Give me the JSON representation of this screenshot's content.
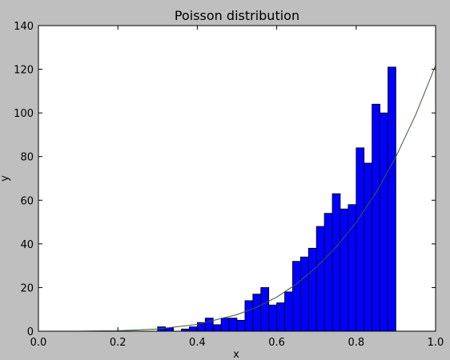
{
  "chart_data": {
    "type": "bar",
    "title": "Poisson distribution",
    "xlabel": "x",
    "ylabel": "y",
    "xlim": [
      0.0,
      1.0
    ],
    "ylim": [
      0,
      140
    ],
    "x_ticks": [
      "0.0",
      "0.2",
      "0.4",
      "0.6",
      "0.8",
      "1.0"
    ],
    "y_ticks": [
      "0",
      "20",
      "40",
      "60",
      "80",
      "100",
      "120",
      "140"
    ],
    "grid": false,
    "bin_width": 0.02,
    "bins": [
      {
        "x": 0.3,
        "y": 2
      },
      {
        "x": 0.32,
        "y": 1.5
      },
      {
        "x": 0.36,
        "y": 1
      },
      {
        "x": 0.38,
        "y": 2
      },
      {
        "x": 0.4,
        "y": 4
      },
      {
        "x": 0.42,
        "y": 6
      },
      {
        "x": 0.44,
        "y": 3
      },
      {
        "x": 0.46,
        "y": 6
      },
      {
        "x": 0.48,
        "y": 6
      },
      {
        "x": 0.5,
        "y": 5
      },
      {
        "x": 0.52,
        "y": 14
      },
      {
        "x": 0.54,
        "y": 17
      },
      {
        "x": 0.56,
        "y": 20
      },
      {
        "x": 0.58,
        "y": 12
      },
      {
        "x": 0.6,
        "y": 13
      },
      {
        "x": 0.62,
        "y": 18
      },
      {
        "x": 0.64,
        "y": 32
      },
      {
        "x": 0.66,
        "y": 34
      },
      {
        "x": 0.68,
        "y": 38
      },
      {
        "x": 0.7,
        "y": 48
      },
      {
        "x": 0.72,
        "y": 54
      },
      {
        "x": 0.74,
        "y": 63
      },
      {
        "x": 0.76,
        "y": 56
      },
      {
        "x": 0.78,
        "y": 58
      },
      {
        "x": 0.8,
        "y": 84
      },
      {
        "x": 0.82,
        "y": 77
      },
      {
        "x": 0.84,
        "y": 104
      },
      {
        "x": 0.86,
        "y": 100
      },
      {
        "x": 0.88,
        "y": 121
      }
    ],
    "curve": {
      "type": "line",
      "x": [
        0.0,
        0.1,
        0.2,
        0.3,
        0.4,
        0.5,
        0.55,
        0.6,
        0.65,
        0.7,
        0.75,
        0.8,
        0.85,
        0.9,
        0.95,
        1.0
      ],
      "y": [
        0,
        0.01,
        0.2,
        1,
        3.1,
        7.6,
        11,
        15.6,
        21.7,
        29.3,
        38.6,
        49.8,
        63.5,
        79.9,
        99.2,
        121.8
      ]
    },
    "colors": {
      "figure_bg": "#bfbfbf",
      "plot_bg": "#ffffff",
      "bar_fill": "#0000ff",
      "bar_edge": "#000000",
      "curve": "#3a5a3a"
    }
  }
}
